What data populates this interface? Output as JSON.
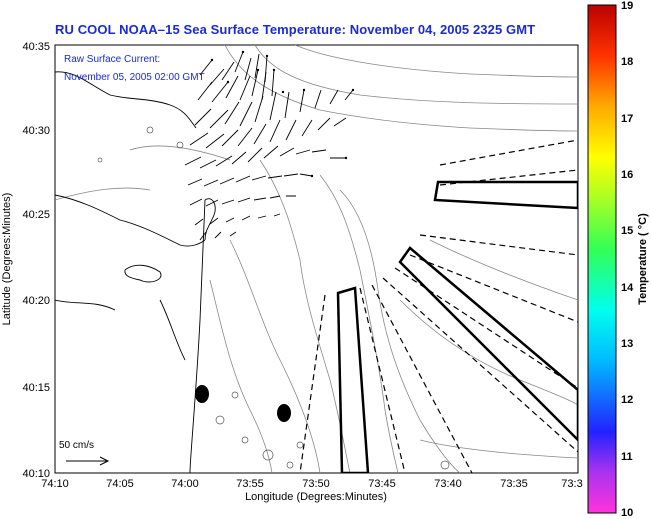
{
  "title": "RU COOL  NOAA–15  Sea Surface Temperature:  November 04, 2005 2325 GMT",
  "annotation": {
    "line1": "Raw Surface Current:",
    "line2": "November 05, 2005 02:00 GMT"
  },
  "axes": {
    "ylabel": "Latitude (Degrees:Minutes)",
    "xlabel": "Longitude (Degrees:Minutes)",
    "lat_ticks": [
      "40:35",
      "40:30",
      "40:25",
      "40:20",
      "40:15",
      "40:10"
    ],
    "lon_ticks": [
      "74:10",
      "74:05",
      "74:00",
      "73:55",
      "73:50",
      "73:45",
      "73:40",
      "73:35",
      "73:3"
    ]
  },
  "scale": {
    "label": "50 cm/s"
  },
  "colorbar": {
    "label": "Temperature ( °C)",
    "ticks": [
      "19",
      "18",
      "17",
      "16",
      "15",
      "14",
      "13",
      "12",
      "11",
      "10"
    ],
    "min": 10,
    "max": 19
  }
}
